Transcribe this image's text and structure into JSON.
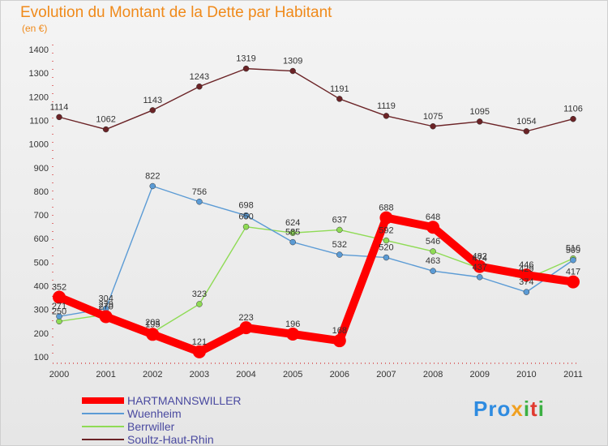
{
  "chart_data": {
    "type": "line",
    "title": "Evolution du Montant de la Dette par Habitant",
    "subtitle": "(en €)",
    "xlabel": "",
    "ylabel": "",
    "categories": [
      "2000",
      "2001",
      "2002",
      "2003",
      "2004",
      "2005",
      "2006",
      "2007",
      "2008",
      "2009",
      "2010",
      "2011"
    ],
    "ylim": [
      100,
      1400
    ],
    "yticks": [
      100,
      200,
      300,
      400,
      500,
      600,
      700,
      800,
      900,
      1000,
      1100,
      1200,
      1300,
      1400
    ],
    "grid": false,
    "legend_position": "bottom-left",
    "series": [
      {
        "name": "HARTMANNSWILLER",
        "color": "#ff0000",
        "values": [
          352,
          270,
          195,
          121,
          223,
          196,
          168,
          688,
          648,
          482,
          446,
          417
        ]
      },
      {
        "name": "Wuenheim",
        "color": "#5b9bd5",
        "values": [
          271,
          304,
          822,
          756,
          698,
          585,
          532,
          520,
          463,
          437,
          374,
          509
        ]
      },
      {
        "name": "Berrwiller",
        "color": "#8fdb55",
        "values": [
          250,
          279,
          203,
          323,
          650,
          624,
          637,
          592,
          546,
          474,
          429,
          516
        ]
      },
      {
        "name": "Soultz-Haut-Rhin",
        "color": "#6b2326",
        "values": [
          1114,
          1062,
          1143,
          1243,
          1319,
          1309,
          1191,
          1119,
          1075,
          1095,
          1054,
          1106
        ]
      }
    ]
  },
  "logo": {
    "p1": "Pro",
    "p2": "x",
    "p3": "i",
    "p4": "t",
    "p5": "i"
  }
}
